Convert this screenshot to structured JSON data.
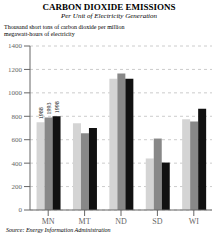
{
  "chart_data": {
    "type": "bar",
    "title": "CARBON DIOXIDE EMISSIONS",
    "subtitle": "Per Unit of Electricity Generation",
    "ylabel": "Thousand short tons of carbon dioxide per million\nmegawatt-hours of electricity",
    "source": "Source: Energy Information Administration",
    "categories": [
      "MN",
      "MT",
      "ND",
      "SD",
      "WI"
    ],
    "series": [
      {
        "name": "1988",
        "color": "#d4d4d4",
        "values": [
          750,
          740,
          1120,
          440,
          775
        ]
      },
      {
        "name": "1993",
        "color": "#888888",
        "values": [
          790,
          655,
          1165,
          610,
          755
        ]
      },
      {
        "name": "1998",
        "color": "#111111",
        "values": [
          800,
          700,
          1120,
          405,
          865
        ]
      }
    ],
    "ylim": [
      0,
      1400
    ],
    "yticks": [
      0,
      200,
      400,
      600,
      800,
      1000,
      1200,
      1400
    ],
    "grid": true
  }
}
